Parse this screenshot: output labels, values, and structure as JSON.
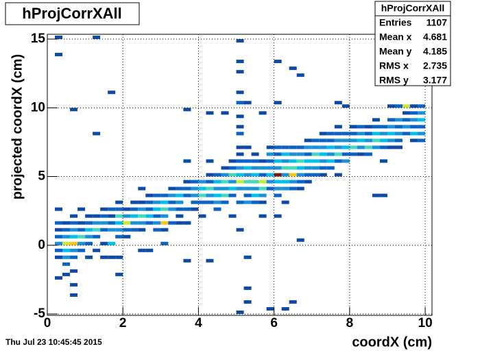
{
  "chart_data": {
    "type": "heatmap",
    "title": "hProjCorrXAll",
    "xlabel": "coordX (cm)",
    "ylabel": "projected coordX (cm)",
    "date": "Thu Jul 23 10:45:45 2015",
    "stats": {
      "name": "hProjCorrXAll",
      "rows": [
        [
          "Entries",
          "1107"
        ],
        [
          "Mean x",
          "4.681"
        ],
        [
          "Mean y",
          "4.185"
        ],
        [
          "RMS x",
          "2.735"
        ],
        [
          "RMS y",
          "3.177"
        ]
      ]
    },
    "xlim": [
      0,
      10.18
    ],
    "ylim": [
      -5.1,
      15.35
    ],
    "xticks": [
      0,
      2,
      4,
      6,
      8,
      10
    ],
    "yticks": [
      -5,
      0,
      5,
      10,
      15
    ],
    "grid": true,
    "binsize": [
      0.2,
      0.25
    ],
    "palette": [
      "#0d4aa6",
      "#0b62c4",
      "#1a90d8",
      "#00bfe8",
      "#48d8b8",
      "#c8e83a",
      "#f5c518",
      "#e5541c",
      "#7a1a08"
    ],
    "cells": [
      [
        0.2,
        15,
        1
      ],
      [
        1.2,
        15,
        1
      ],
      [
        0.2,
        13.75,
        1
      ],
      [
        5,
        14.75,
        1
      ],
      [
        5,
        13.25,
        1
      ],
      [
        5,
        12.5,
        1
      ],
      [
        6,
        13.25,
        1
      ],
      [
        6.4,
        12.75,
        1
      ],
      [
        6.6,
        12.25,
        1
      ],
      [
        1.6,
        11,
        1
      ],
      [
        5,
        11,
        1
      ],
      [
        5.2,
        10.25,
        1
      ],
      [
        5,
        10.25,
        2
      ],
      [
        3.6,
        9.75,
        1
      ],
      [
        0.6,
        9.75,
        1
      ],
      [
        4.2,
        9.5,
        1
      ],
      [
        4.6,
        9.5,
        1
      ],
      [
        5,
        9.25,
        1
      ],
      [
        5.6,
        9.5,
        1
      ],
      [
        6,
        10.25,
        1
      ],
      [
        7.6,
        10.25,
        1
      ],
      [
        0.2,
        -2.5,
        1
      ],
      [
        0.4,
        -2.25,
        1
      ],
      [
        0.6,
        -3,
        1
      ],
      [
        0.6,
        -3.75,
        1
      ],
      [
        1.8,
        -2.25,
        1
      ],
      [
        3.6,
        -1.25,
        1
      ],
      [
        4.2,
        -1.25,
        1
      ],
      [
        5.2,
        -1,
        1
      ],
      [
        5.2,
        -3.25,
        1
      ],
      [
        5.2,
        -4.25,
        1
      ],
      [
        5,
        -5,
        1
      ],
      [
        5.8,
        -4.75,
        1
      ],
      [
        6.2,
        -4.75,
        1
      ],
      [
        6.4,
        -4.25,
        1
      ],
      [
        6.6,
        0.25,
        1
      ],
      [
        8.6,
        3.5,
        1
      ],
      [
        8.8,
        3.5,
        1
      ],
      [
        0.2,
        -1,
        1
      ],
      [
        0.2,
        -0.5,
        2
      ],
      [
        0.2,
        0,
        3
      ],
      [
        0.2,
        0.5,
        2
      ],
      [
        0.2,
        1,
        1
      ],
      [
        0.2,
        1.5,
        2
      ],
      [
        0.2,
        2.5,
        1
      ],
      [
        0.4,
        -1.5,
        2
      ],
      [
        0.4,
        -1,
        3
      ],
      [
        0.4,
        -0.5,
        4
      ],
      [
        0.4,
        0,
        6
      ],
      [
        0.4,
        0.5,
        3
      ],
      [
        0.4,
        1,
        2
      ],
      [
        0.4,
        1.5,
        1
      ],
      [
        0.6,
        -2,
        1
      ],
      [
        0.6,
        -1,
        2
      ],
      [
        0.6,
        -0.5,
        3
      ],
      [
        0.6,
        0,
        7
      ],
      [
        0.6,
        0.5,
        4
      ],
      [
        0.6,
        1,
        3
      ],
      [
        0.6,
        1.5,
        2
      ],
      [
        0.6,
        2,
        1
      ],
      [
        0.8,
        -0.5,
        2
      ],
      [
        0.8,
        0,
        3
      ],
      [
        0.8,
        0.5,
        5
      ],
      [
        0.8,
        1,
        2
      ],
      [
        0.8,
        1.5,
        1
      ],
      [
        0.8,
        2.5,
        1
      ],
      [
        1,
        -1,
        1
      ],
      [
        1,
        0,
        2
      ],
      [
        1,
        0.5,
        3
      ],
      [
        1,
        1,
        4
      ],
      [
        1,
        1.5,
        2
      ],
      [
        1,
        2,
        1
      ],
      [
        1.2,
        -0.5,
        1
      ],
      [
        1.2,
        0.5,
        2
      ],
      [
        1.2,
        1,
        5
      ],
      [
        1.2,
        1.5,
        3
      ],
      [
        1.2,
        2,
        1
      ],
      [
        1.2,
        8,
        1
      ],
      [
        1.4,
        0,
        1
      ],
      [
        1.4,
        1,
        2
      ],
      [
        1.4,
        1.5,
        3
      ],
      [
        1.4,
        2,
        2
      ],
      [
        1.4,
        2.5,
        1
      ],
      [
        1.4,
        -1,
        1
      ],
      [
        1.6,
        0,
        4
      ],
      [
        1.6,
        1,
        3
      ],
      [
        1.6,
        1.5,
        2
      ],
      [
        1.6,
        2,
        1
      ],
      [
        1.6,
        2.5,
        2
      ],
      [
        1.6,
        -1,
        1
      ],
      [
        1.8,
        0.5,
        2
      ],
      [
        1.8,
        1,
        3
      ],
      [
        1.8,
        1.5,
        4
      ],
      [
        1.8,
        2,
        5
      ],
      [
        1.8,
        2.5,
        2
      ],
      [
        1.8,
        3,
        1
      ],
      [
        1.8,
        -1,
        1
      ],
      [
        2,
        0.5,
        1
      ],
      [
        2,
        1,
        2
      ],
      [
        2,
        1.5,
        6
      ],
      [
        2,
        2,
        3
      ],
      [
        2,
        2.5,
        1
      ],
      [
        2.2,
        1,
        2
      ],
      [
        2.2,
        1.5,
        3
      ],
      [
        2.2,
        2,
        4
      ],
      [
        2.2,
        2.5,
        2
      ],
      [
        2.2,
        3,
        1
      ],
      [
        2.4,
        1,
        1
      ],
      [
        2.4,
        1.5,
        3
      ],
      [
        2.4,
        2,
        5
      ],
      [
        2.4,
        2.5,
        3
      ],
      [
        2.4,
        3,
        1
      ],
      [
        2.4,
        4,
        1
      ],
      [
        2.4,
        -0.5,
        1
      ],
      [
        2.6,
        1.5,
        2
      ],
      [
        2.6,
        2,
        4
      ],
      [
        2.6,
        2.5,
        2
      ],
      [
        2.6,
        3,
        2
      ],
      [
        2.6,
        3.5,
        1
      ],
      [
        2.6,
        -0.5,
        1
      ],
      [
        2.8,
        1,
        2
      ],
      [
        2.8,
        1.5,
        3
      ],
      [
        2.8,
        2,
        2
      ],
      [
        2.8,
        2.5,
        4
      ],
      [
        2.8,
        3,
        3
      ],
      [
        2.8,
        3.5,
        2
      ],
      [
        3,
        1,
        1
      ],
      [
        3,
        1.5,
        7
      ],
      [
        3,
        2,
        3
      ],
      [
        3,
        2.5,
        5
      ],
      [
        3,
        3,
        4
      ],
      [
        3,
        3.5,
        2
      ],
      [
        3,
        0,
        2
      ],
      [
        3.2,
        1.5,
        2
      ],
      [
        3.2,
        2.5,
        3
      ],
      [
        3.2,
        3,
        2
      ],
      [
        3.2,
        3.5,
        3
      ],
      [
        3.2,
        4,
        1
      ],
      [
        3.4,
        2,
        1
      ],
      [
        3.4,
        2.5,
        2
      ],
      [
        3.4,
        3,
        3
      ],
      [
        3.4,
        3.5,
        4
      ],
      [
        3.4,
        4,
        2
      ],
      [
        3.4,
        1.5,
        1
      ],
      [
        3.6,
        1.5,
        1
      ],
      [
        3.6,
        2.5,
        2
      ],
      [
        3.6,
        3.5,
        2
      ],
      [
        3.6,
        4,
        2
      ],
      [
        3.6,
        4.5,
        1
      ],
      [
        3.6,
        6,
        1
      ],
      [
        3.8,
        2.5,
        1
      ],
      [
        3.8,
        3,
        2
      ],
      [
        3.8,
        3.5,
        3
      ],
      [
        3.8,
        4,
        3
      ],
      [
        3.8,
        4.5,
        2
      ],
      [
        4,
        2,
        1
      ],
      [
        4,
        3,
        2
      ],
      [
        4,
        3.5,
        5
      ],
      [
        4,
        4,
        4
      ],
      [
        4,
        4.5,
        3
      ],
      [
        4.2,
        3,
        2
      ],
      [
        4.2,
        3.5,
        3
      ],
      [
        4.2,
        4,
        5
      ],
      [
        4.2,
        4.5,
        2
      ],
      [
        4.2,
        5,
        1
      ],
      [
        4.2,
        6,
        1
      ],
      [
        4.4,
        2.5,
        2
      ],
      [
        4.4,
        3,
        3
      ],
      [
        4.4,
        3.5,
        4
      ],
      [
        4.4,
        4,
        3
      ],
      [
        4.4,
        4.5,
        4
      ],
      [
        4.4,
        5,
        2
      ],
      [
        4.6,
        3,
        2
      ],
      [
        4.6,
        3.5,
        5
      ],
      [
        4.6,
        4,
        3
      ],
      [
        4.6,
        4.5,
        5
      ],
      [
        4.6,
        5,
        3
      ],
      [
        4.6,
        5.5,
        1
      ],
      [
        4.8,
        3.5,
        2
      ],
      [
        4.8,
        4,
        4
      ],
      [
        4.8,
        4.5,
        3
      ],
      [
        4.8,
        5,
        5
      ],
      [
        4.8,
        5.5,
        2
      ],
      [
        4.8,
        6,
        1
      ],
      [
        4.8,
        2,
        1
      ],
      [
        5,
        3,
        2
      ],
      [
        5,
        4,
        3
      ],
      [
        5,
        4.5,
        6
      ],
      [
        5,
        5,
        4
      ],
      [
        5,
        5.5,
        3
      ],
      [
        5,
        6,
        2
      ],
      [
        5,
        6.5,
        1
      ],
      [
        5,
        7,
        1
      ],
      [
        5,
        8,
        2
      ],
      [
        5,
        8.5,
        1
      ],
      [
        5,
        1,
        1
      ],
      [
        5.2,
        3,
        3
      ],
      [
        5.2,
        3.5,
        2
      ],
      [
        5.2,
        4,
        3
      ],
      [
        5.2,
        4.5,
        5
      ],
      [
        5.2,
        5,
        3
      ],
      [
        5.2,
        5.5,
        4
      ],
      [
        5.2,
        6,
        2
      ],
      [
        5.2,
        7,
        1
      ],
      [
        5.4,
        3,
        2
      ],
      [
        5.4,
        3.5,
        4
      ],
      [
        5.4,
        4,
        3
      ],
      [
        5.4,
        4.5,
        5
      ],
      [
        5.4,
        5,
        4
      ],
      [
        5.4,
        5.5,
        3
      ],
      [
        5.4,
        6,
        2
      ],
      [
        5.4,
        6.5,
        1
      ],
      [
        5.6,
        3,
        1
      ],
      [
        5.6,
        3.5,
        3
      ],
      [
        5.6,
        4,
        5
      ],
      [
        5.6,
        4.5,
        6
      ],
      [
        5.6,
        5,
        2
      ],
      [
        5.6,
        5.5,
        3
      ],
      [
        5.6,
        6,
        1
      ],
      [
        5.6,
        2,
        1
      ],
      [
        5.8,
        4,
        2
      ],
      [
        5.8,
        4.5,
        3
      ],
      [
        5.8,
        5,
        4
      ],
      [
        5.8,
        5.5,
        3
      ],
      [
        5.8,
        6,
        2
      ],
      [
        5.8,
        6.5,
        3
      ],
      [
        5.8,
        7,
        1
      ],
      [
        6,
        3.5,
        2
      ],
      [
        6,
        4,
        3
      ],
      [
        6,
        4.5,
        4
      ],
      [
        6,
        5,
        9
      ],
      [
        6,
        5.5,
        3
      ],
      [
        6,
        6,
        4
      ],
      [
        6,
        6.5,
        2
      ],
      [
        6,
        7,
        2
      ],
      [
        6,
        2,
        1
      ],
      [
        6.2,
        3,
        1
      ],
      [
        6.2,
        4,
        3
      ],
      [
        6.2,
        4.5,
        4
      ],
      [
        6.2,
        5,
        3
      ],
      [
        6.2,
        5.5,
        5
      ],
      [
        6.2,
        6,
        3
      ],
      [
        6.2,
        6.5,
        4
      ],
      [
        6.2,
        7,
        2
      ],
      [
        6.4,
        4,
        2
      ],
      [
        6.4,
        4.5,
        3
      ],
      [
        6.4,
        5,
        7
      ],
      [
        6.4,
        5.5,
        5
      ],
      [
        6.4,
        6,
        4
      ],
      [
        6.4,
        6.5,
        3
      ],
      [
        6.4,
        7,
        2
      ],
      [
        6.6,
        4,
        1
      ],
      [
        6.6,
        4.5,
        2
      ],
      [
        6.6,
        5,
        3
      ],
      [
        6.6,
        5.5,
        4
      ],
      [
        6.6,
        6,
        5
      ],
      [
        6.6,
        6.5,
        3
      ],
      [
        6.6,
        7,
        2
      ],
      [
        6.8,
        4.5,
        1
      ],
      [
        6.8,
        5,
        2
      ],
      [
        6.8,
        5.5,
        3
      ],
      [
        6.8,
        6,
        4
      ],
      [
        6.8,
        6.5,
        2
      ],
      [
        6.8,
        7,
        3
      ],
      [
        6.8,
        7.5,
        1
      ],
      [
        7,
        5,
        2
      ],
      [
        7,
        5.5,
        3
      ],
      [
        7,
        6,
        4
      ],
      [
        7,
        6.5,
        5
      ],
      [
        7,
        7,
        3
      ],
      [
        7,
        7.5,
        2
      ],
      [
        7.2,
        5,
        1
      ],
      [
        7.2,
        5.5,
        2
      ],
      [
        7.2,
        6,
        3
      ],
      [
        7.2,
        6.5,
        4
      ],
      [
        7.2,
        7,
        3
      ],
      [
        7.2,
        7.5,
        2
      ],
      [
        7.2,
        8,
        1
      ],
      [
        7.4,
        5.5,
        2
      ],
      [
        7.4,
        6,
        4
      ],
      [
        7.4,
        6.5,
        3
      ],
      [
        7.4,
        7,
        4
      ],
      [
        7.4,
        7.5,
        2
      ],
      [
        7.4,
        8,
        2
      ],
      [
        7.6,
        5,
        1
      ],
      [
        7.6,
        6,
        2
      ],
      [
        7.6,
        6.5,
        5
      ],
      [
        7.6,
        7,
        3
      ],
      [
        7.6,
        7.5,
        3
      ],
      [
        7.6,
        8,
        2
      ],
      [
        7.6,
        8.5,
        1
      ],
      [
        7.8,
        6,
        3
      ],
      [
        7.8,
        6.5,
        2
      ],
      [
        7.8,
        7,
        4
      ],
      [
        7.8,
        7.5,
        3
      ],
      [
        7.8,
        8,
        2
      ],
      [
        7.8,
        10,
        1
      ],
      [
        8,
        6.5,
        2
      ],
      [
        8,
        7,
        5
      ],
      [
        8,
        7.5,
        3
      ],
      [
        8,
        8,
        2
      ],
      [
        8,
        8.5,
        1
      ],
      [
        8.2,
        6.5,
        1
      ],
      [
        8.2,
        7,
        3
      ],
      [
        8.2,
        7.5,
        4
      ],
      [
        8.2,
        8,
        3
      ],
      [
        8.2,
        8.5,
        2
      ],
      [
        8.4,
        6.5,
        2
      ],
      [
        8.4,
        7,
        5
      ],
      [
        8.4,
        7.5,
        3
      ],
      [
        8.4,
        8,
        2
      ],
      [
        8.4,
        8.5,
        1
      ],
      [
        8.6,
        7,
        3
      ],
      [
        8.6,
        7.5,
        5
      ],
      [
        8.6,
        8,
        4
      ],
      [
        8.6,
        8.5,
        2
      ],
      [
        8.6,
        9,
        1
      ],
      [
        8.8,
        6,
        1
      ],
      [
        8.8,
        7,
        2
      ],
      [
        8.8,
        7.5,
        4
      ],
      [
        8.8,
        8,
        3
      ],
      [
        8.8,
        8.5,
        2
      ],
      [
        9,
        7,
        1
      ],
      [
        9,
        7.5,
        3
      ],
      [
        9,
        8,
        4
      ],
      [
        9,
        8.5,
        3
      ],
      [
        9,
        9,
        2
      ],
      [
        9,
        10,
        1
      ],
      [
        9.2,
        7.5,
        2
      ],
      [
        9.2,
        8,
        3
      ],
      [
        9.2,
        8.5,
        2
      ],
      [
        9.2,
        9,
        3
      ],
      [
        9.2,
        10,
        2
      ],
      [
        9.2,
        7,
        1
      ],
      [
        9.4,
        8,
        2
      ],
      [
        9.4,
        8.5,
        3
      ],
      [
        9.4,
        9,
        2
      ],
      [
        9.4,
        9.5,
        1
      ],
      [
        9.4,
        10,
        6
      ],
      [
        9.6,
        7.5,
        1
      ],
      [
        9.6,
        8,
        4
      ],
      [
        9.6,
        8.5,
        2
      ],
      [
        9.6,
        9,
        3
      ],
      [
        9.6,
        9.5,
        2
      ],
      [
        9.6,
        10,
        1
      ],
      [
        9.8,
        7.5,
        2
      ],
      [
        9.8,
        8,
        3
      ],
      [
        9.8,
        8.5,
        2
      ],
      [
        9.8,
        9,
        4
      ],
      [
        9.8,
        9.5,
        3
      ],
      [
        9.8,
        10,
        2
      ]
    ]
  }
}
